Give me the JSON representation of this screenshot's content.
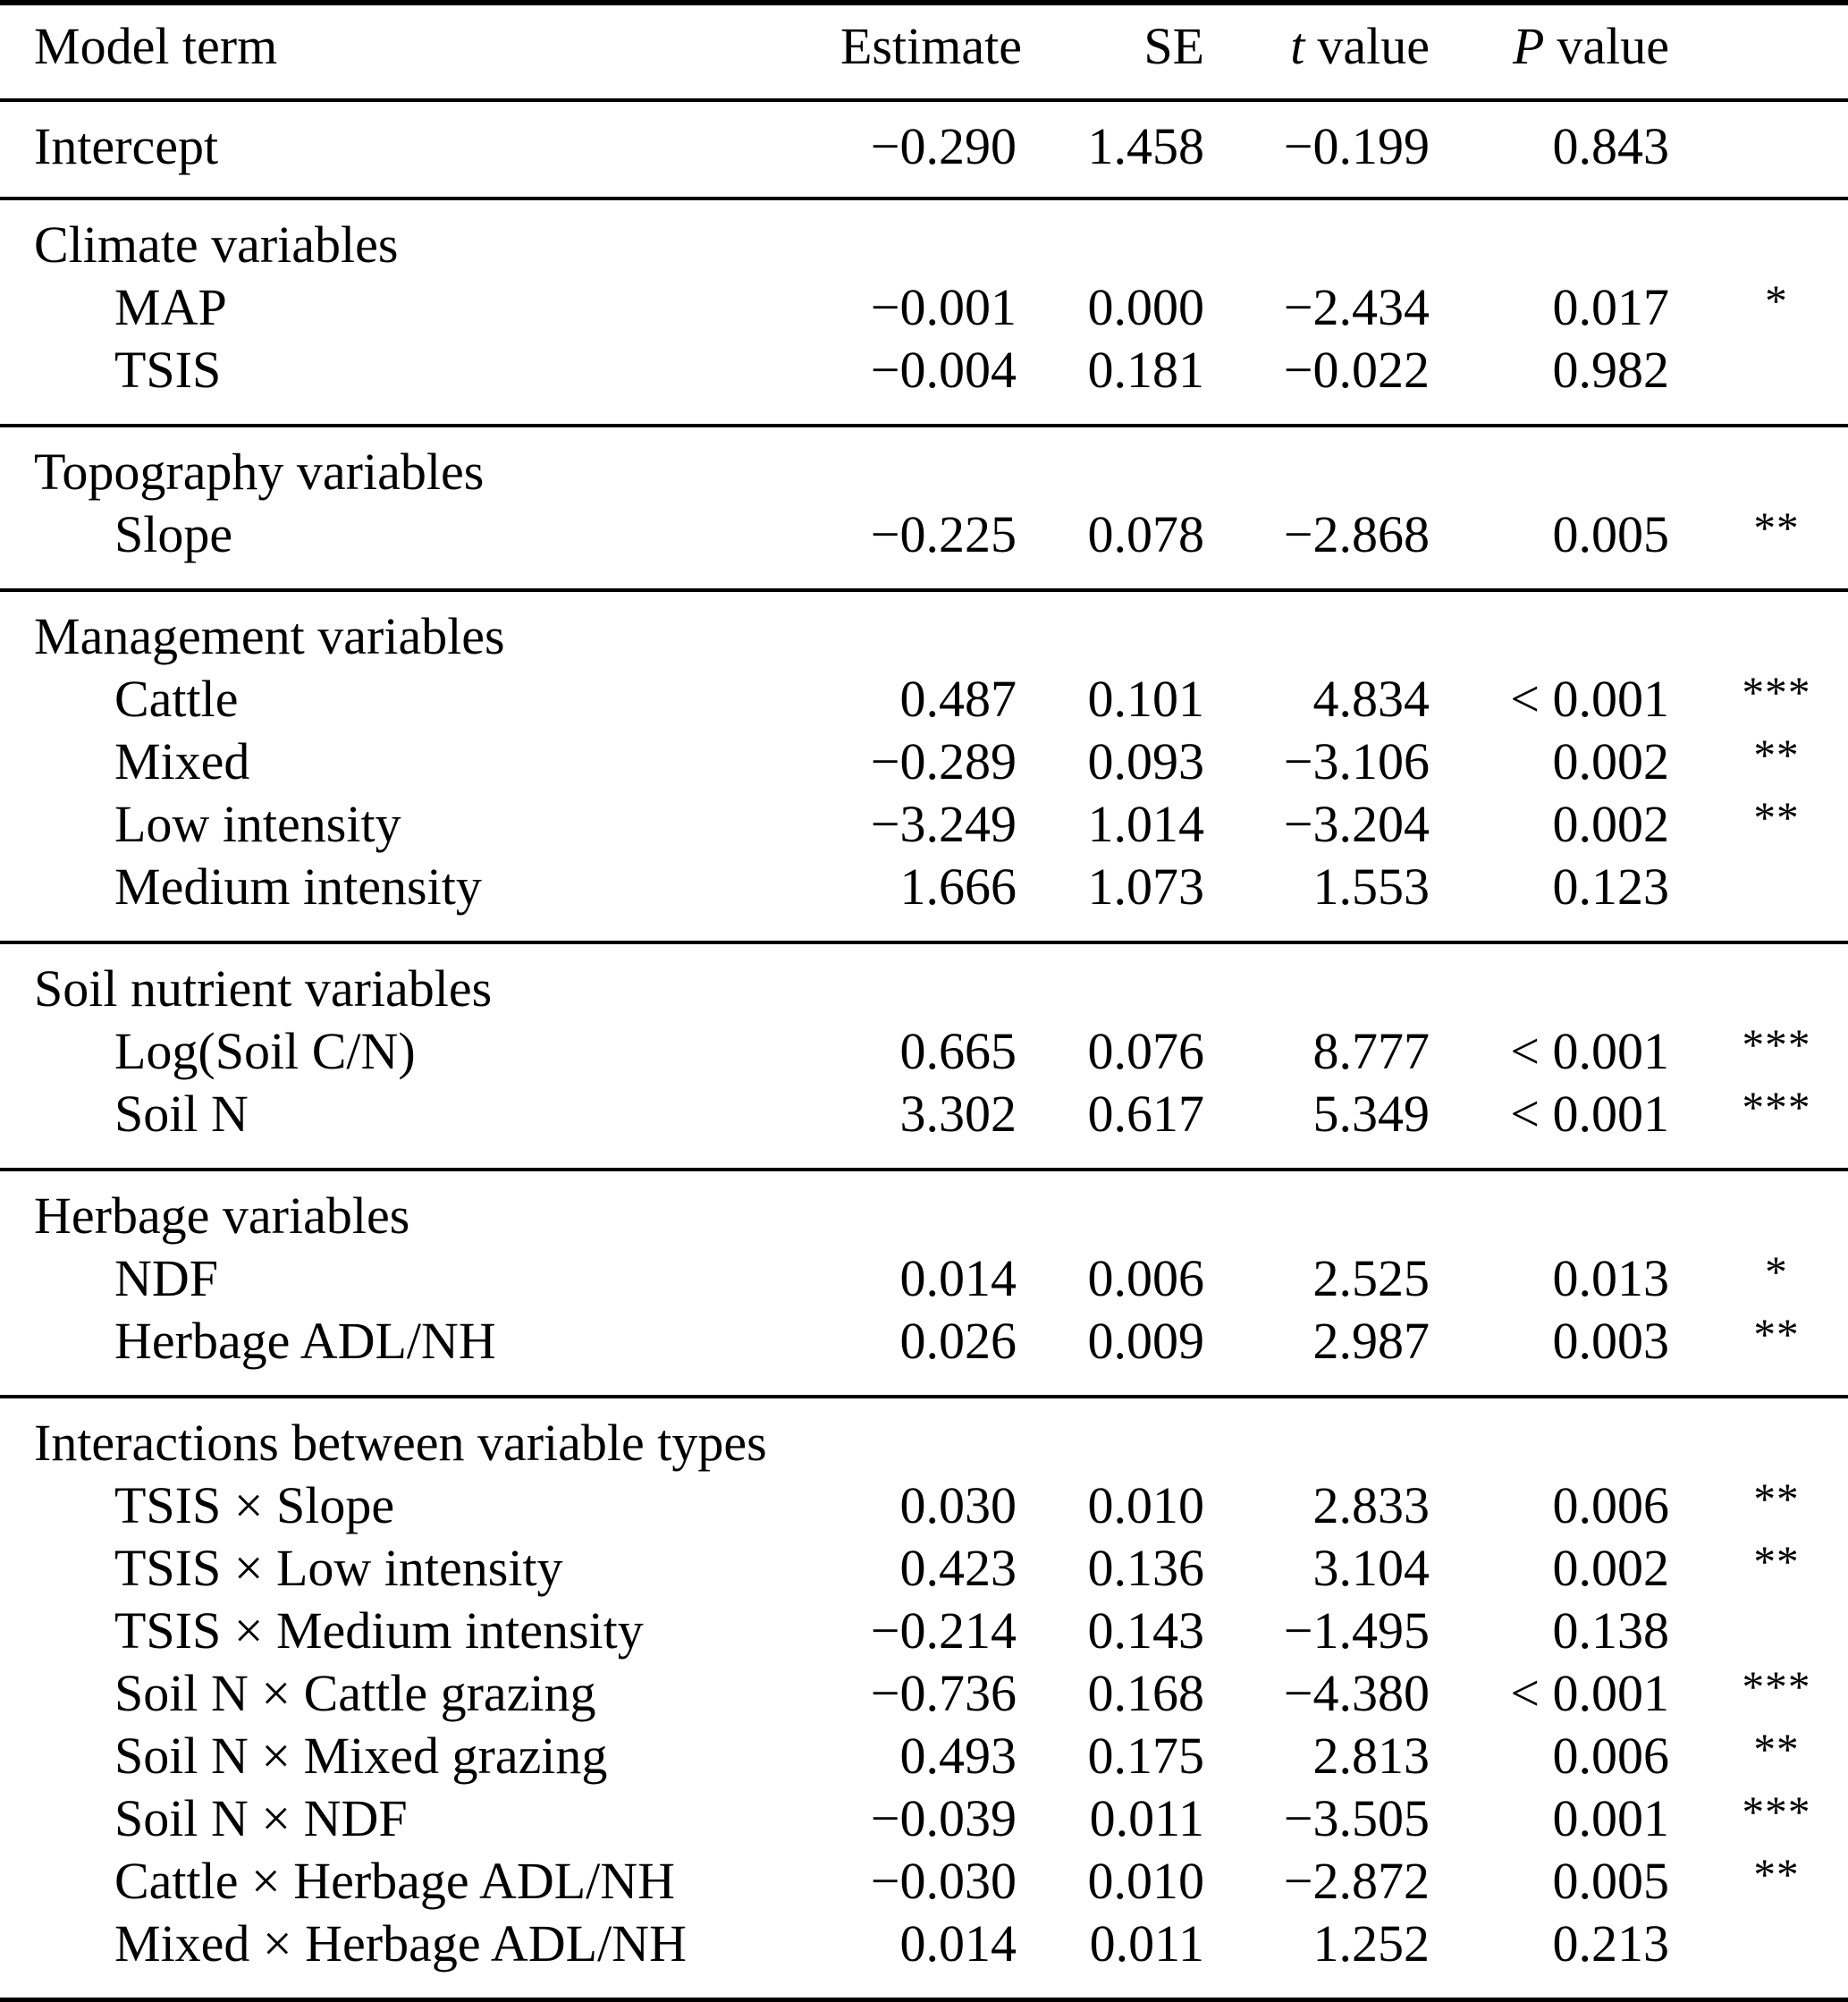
{
  "table": {
    "header": {
      "model_term": "Model term",
      "estimate": "Estimate",
      "se": "SE",
      "t_symbol": "t",
      "p_symbol": "P",
      "value_word": "value"
    },
    "sections": [
      {
        "rows": [
          {
            "term": "Intercept",
            "estimate": "−0.290",
            "se": "1.458",
            "t": "−0.199",
            "p": "0.843",
            "sig": ""
          }
        ]
      },
      {
        "label": "Climate variables",
        "rows": [
          {
            "term": "MAP",
            "estimate": "−0.001",
            "se": "0.000",
            "t": "−2.434",
            "p": "0.017",
            "sig": "*"
          },
          {
            "term": "TSIS",
            "estimate": "−0.004",
            "se": "0.181",
            "t": "−0.022",
            "p": "0.982",
            "sig": ""
          }
        ]
      },
      {
        "label": "Topography variables",
        "rows": [
          {
            "term": "Slope",
            "estimate": "−0.225",
            "se": "0.078",
            "t": "−2.868",
            "p": "0.005",
            "sig": "**"
          }
        ]
      },
      {
        "label": "Management variables",
        "rows": [
          {
            "term": "Cattle",
            "estimate": "0.487",
            "se": "0.101",
            "t": "4.834",
            "p": "< 0.001",
            "sig": "***"
          },
          {
            "term": "Mixed",
            "estimate": "−0.289",
            "se": "0.093",
            "t": "−3.106",
            "p": "0.002",
            "sig": "**"
          },
          {
            "term": "Low intensity",
            "estimate": "−3.249",
            "se": "1.014",
            "t": "−3.204",
            "p": "0.002",
            "sig": "**"
          },
          {
            "term": "Medium intensity",
            "estimate": "1.666",
            "se": "1.073",
            "t": "1.553",
            "p": "0.123",
            "sig": ""
          }
        ]
      },
      {
        "label": "Soil nutrient variables",
        "rows": [
          {
            "term": "Log(Soil C/N)",
            "estimate": "0.665",
            "se": "0.076",
            "t": "8.777",
            "p": "< 0.001",
            "sig": "***"
          },
          {
            "term": "Soil N",
            "estimate": "3.302",
            "se": "0.617",
            "t": "5.349",
            "p": "< 0.001",
            "sig": "***"
          }
        ]
      },
      {
        "label": "Herbage variables",
        "rows": [
          {
            "term": "NDF",
            "estimate": "0.014",
            "se": "0.006",
            "t": "2.525",
            "p": "0.013",
            "sig": "*"
          },
          {
            "term": "Herbage ADL/NH",
            "estimate": "0.026",
            "se": "0.009",
            "t": "2.987",
            "p": "0.003",
            "sig": "**"
          }
        ]
      },
      {
        "label": "Interactions between variable types",
        "rows": [
          {
            "term": "TSIS × Slope",
            "estimate": "0.030",
            "se": "0.010",
            "t": "2.833",
            "p": "0.006",
            "sig": "**"
          },
          {
            "term": "TSIS × Low intensity",
            "estimate": "0.423",
            "se": "0.136",
            "t": "3.104",
            "p": "0.002",
            "sig": "**"
          },
          {
            "term": "TSIS × Medium intensity",
            "estimate": "−0.214",
            "se": "0.143",
            "t": "−1.495",
            "p": "0.138",
            "sig": ""
          },
          {
            "term": "Soil N × Cattle grazing",
            "estimate": "−0.736",
            "se": "0.168",
            "t": "−4.380",
            "p": "< 0.001",
            "sig": "***"
          },
          {
            "term": "Soil N × Mixed grazing",
            "estimate": "0.493",
            "se": "0.175",
            "t": "2.813",
            "p": "0.006",
            "sig": "**"
          },
          {
            "term": "Soil N × NDF",
            "estimate": "−0.039",
            "se": "0.011",
            "t": "−3.505",
            "p": "0.001",
            "sig": "***"
          },
          {
            "term": "Cattle × Herbage ADL/NH",
            "estimate": "−0.030",
            "se": "0.010",
            "t": "−2.872",
            "p": "0.005",
            "sig": "**"
          },
          {
            "term": "Mixed × Herbage ADL/NH",
            "estimate": "0.014",
            "se": "0.011",
            "t": "1.252",
            "p": "0.213",
            "sig": ""
          }
        ]
      }
    ]
  }
}
